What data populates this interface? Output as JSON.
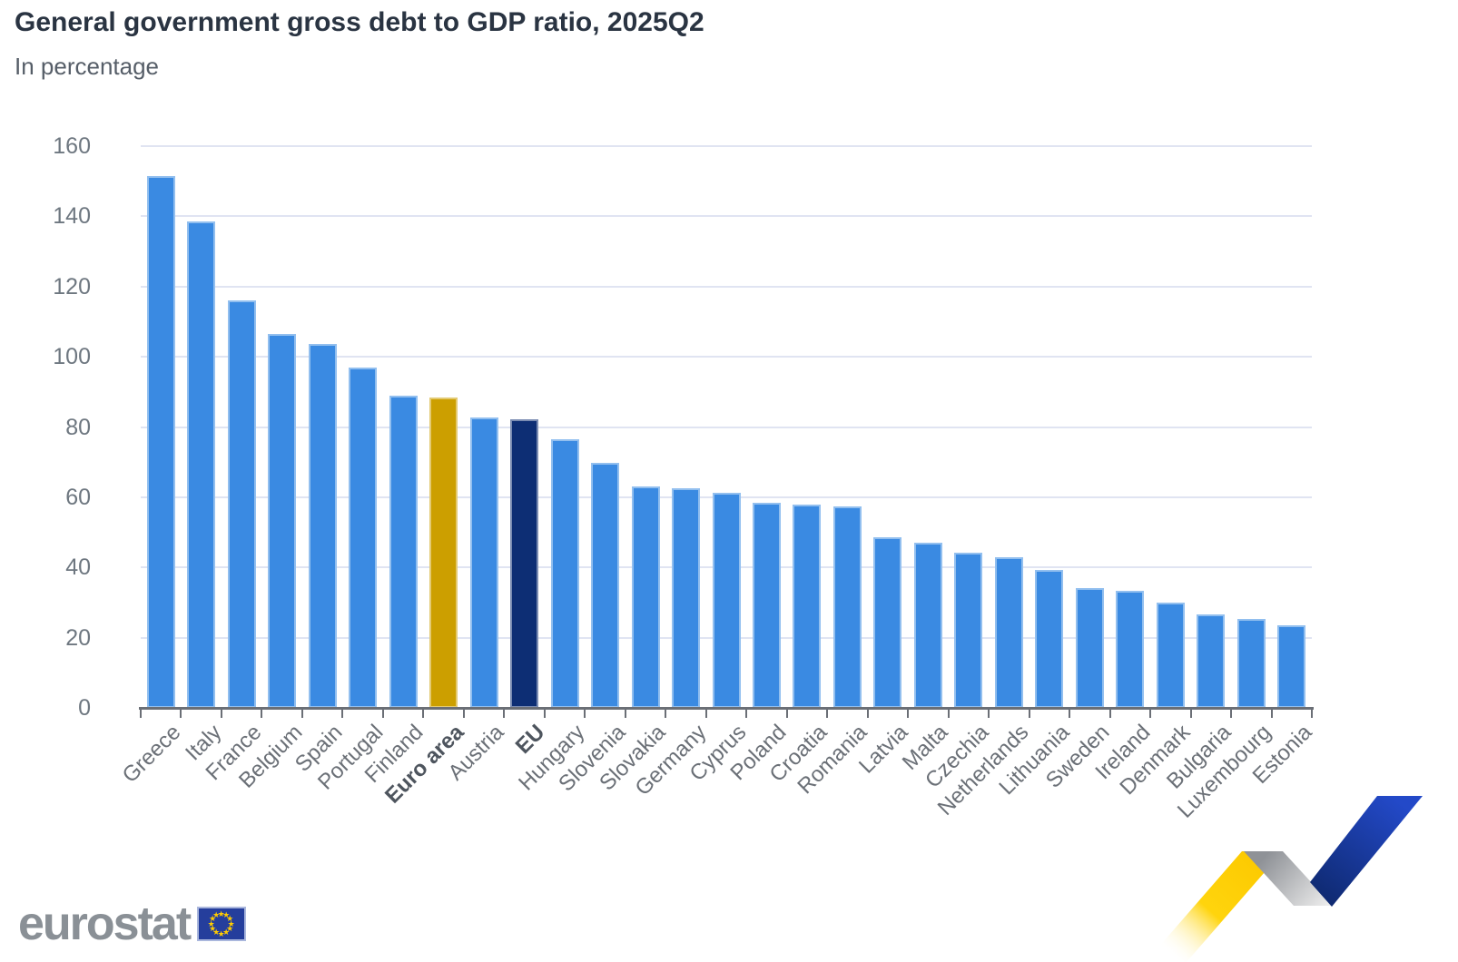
{
  "title": "General government gross debt to GDP ratio, 2025Q2",
  "subtitle": "In percentage",
  "branding": {
    "logo_text": "eurostat",
    "flag_stars": 12
  },
  "colors": {
    "bar_blue": "#3A8AE2",
    "bar_gold": "#CC9F00",
    "bar_navy": "#0D2E74",
    "grid": "#E0E4F2",
    "axis": "#6B6F76",
    "x_label": "#6B7077",
    "x_label_emphasis": "#4E555E",
    "y_label": "#6E7780",
    "title": "#2A3442",
    "subtitle": "#565E68",
    "ribbon_yellow": "#FFD200",
    "ribbon_blue": "#2349C8",
    "flag_blue": "#253E9C",
    "flag_star": "#FFCC00"
  },
  "chart_data": {
    "type": "bar",
    "title": "General government gross debt to GDP ratio, 2025Q2",
    "subtitle": "In percentage",
    "xlabel": "",
    "ylabel": "",
    "ylim": [
      0,
      160
    ],
    "yticks": [
      0,
      20,
      40,
      60,
      80,
      100,
      120,
      140,
      160
    ],
    "grid": "horizontal",
    "legend": false,
    "categories": [
      "Greece",
      "Italy",
      "France",
      "Belgium",
      "Spain",
      "Portugal",
      "Finland",
      "Euro area",
      "Austria",
      "EU",
      "Hungary",
      "Slovenia",
      "Slovakia",
      "Germany",
      "Cyprus",
      "Poland",
      "Croatia",
      "Romania",
      "Latvia",
      "Malta",
      "Czechia",
      "Netherlands",
      "Lithuania",
      "Sweden",
      "Ireland",
      "Denmark",
      "Bulgaria",
      "Luxembourg",
      "Estonia"
    ],
    "values": [
      151.5,
      138.5,
      116.0,
      106.5,
      103.6,
      97.0,
      88.8,
      88.4,
      82.6,
      82.1,
      76.5,
      69.8,
      63.1,
      62.6,
      61.3,
      58.3,
      57.8,
      57.5,
      48.5,
      47.1,
      44.1,
      43.0,
      39.4,
      34.0,
      33.4,
      29.9,
      26.5,
      25.3,
      23.4
    ],
    "highlighted_bars": {
      "Euro area": "bar_gold",
      "EU": "bar_navy"
    },
    "bold_categories": [
      "Euro area",
      "EU"
    ]
  }
}
